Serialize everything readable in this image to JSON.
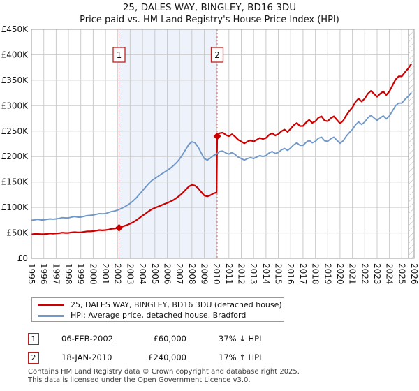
{
  "chart_data": {
    "type": "line",
    "title": "25, DALES WAY, BINGLEY, BD16 3DU",
    "subtitle": "Price paid vs. HM Land Registry's House Price Index (HPI)",
    "xlabel": "",
    "ylabel": "",
    "grid": true,
    "legend_position": "bottom",
    "x_range": [
      1995,
      2026
    ],
    "y_range_k": [
      0,
      450
    ],
    "y_unit": "GBP thousands",
    "x_ticks": [
      1995,
      1996,
      1997,
      1998,
      1999,
      2000,
      2001,
      2002,
      2003,
      2004,
      2005,
      2006,
      2007,
      2008,
      2009,
      2010,
      2011,
      2012,
      2013,
      2014,
      2015,
      2016,
      2017,
      2018,
      2019,
      2020,
      2021,
      2022,
      2023,
      2024,
      2025,
      2026
    ],
    "y_ticks_k": [
      0,
      50,
      100,
      150,
      200,
      250,
      300,
      350,
      400,
      450
    ],
    "y_tick_labels": [
      "£0",
      "£50K",
      "£100K",
      "£150K",
      "£200K",
      "£250K",
      "£300K",
      "£350K",
      "£400K",
      "£450K"
    ],
    "shaded_region": {
      "from": 2002.1,
      "to": 2010.05,
      "color": "#edf2fb"
    },
    "hatched_region": {
      "from": 2025.55,
      "to": 2026
    },
    "sale_markers": [
      {
        "label": "1",
        "x": 2002.1,
        "y_k": 60
      },
      {
        "label": "2",
        "x": 2010.05,
        "y_k": 240
      }
    ],
    "series": [
      {
        "name": "25, DALES WAY, BINGLEY, BD16 3DU (detached house)",
        "color": "#cc0000",
        "width": 2.2,
        "points": [
          [
            1995,
            47
          ],
          [
            1995.25,
            48
          ],
          [
            1995.5,
            48
          ],
          [
            1995.75,
            47.5
          ],
          [
            1996,
            47.5
          ],
          [
            1996.25,
            48
          ],
          [
            1996.5,
            49
          ],
          [
            1996.75,
            48.5
          ],
          [
            1997,
            49
          ],
          [
            1997.25,
            49.5
          ],
          [
            1997.5,
            50.5
          ],
          [
            1997.75,
            50
          ],
          [
            1998,
            50
          ],
          [
            1998.25,
            51
          ],
          [
            1998.5,
            51.5
          ],
          [
            1998.75,
            51
          ],
          [
            1999,
            51
          ],
          [
            1999.25,
            52
          ],
          [
            1999.5,
            53
          ],
          [
            1999.75,
            53
          ],
          [
            2000,
            53.5
          ],
          [
            2000.25,
            54.5
          ],
          [
            2000.5,
            55.5
          ],
          [
            2000.75,
            55
          ],
          [
            2001,
            55.5
          ],
          [
            2001.25,
            56.5
          ],
          [
            2001.5,
            58
          ],
          [
            2001.75,
            58.5
          ],
          [
            2002,
            59.5
          ],
          [
            2002.1,
            60
          ],
          [
            2002.25,
            61.5
          ],
          [
            2002.5,
            63.5
          ],
          [
            2002.75,
            65.5
          ],
          [
            2003,
            68
          ],
          [
            2003.25,
            71
          ],
          [
            2003.5,
            75
          ],
          [
            2003.75,
            79.5
          ],
          [
            2004,
            84
          ],
          [
            2004.25,
            88
          ],
          [
            2004.5,
            92.5
          ],
          [
            2004.75,
            96.5
          ],
          [
            2005,
            99
          ],
          [
            2005.25,
            101.5
          ],
          [
            2005.5,
            104
          ],
          [
            2005.75,
            106.5
          ],
          [
            2006,
            109
          ],
          [
            2006.25,
            111.5
          ],
          [
            2006.5,
            114.5
          ],
          [
            2006.75,
            118.5
          ],
          [
            2007,
            123
          ],
          [
            2007.25,
            128.5
          ],
          [
            2007.5,
            135
          ],
          [
            2007.75,
            141
          ],
          [
            2008,
            144.5
          ],
          [
            2008.25,
            143
          ],
          [
            2008.5,
            138
          ],
          [
            2008.75,
            130.5
          ],
          [
            2009,
            123.5
          ],
          [
            2009.25,
            121.5
          ],
          [
            2009.5,
            124
          ],
          [
            2009.75,
            127.5
          ],
          [
            2010,
            129.5
          ],
          [
            2010.05,
            240
          ],
          [
            2010.25,
            246
          ],
          [
            2010.5,
            247
          ],
          [
            2010.75,
            242.5
          ],
          [
            2011,
            240
          ],
          [
            2011.25,
            244
          ],
          [
            2011.5,
            239
          ],
          [
            2011.75,
            233
          ],
          [
            2012,
            229.5
          ],
          [
            2012.25,
            226
          ],
          [
            2012.5,
            229.5
          ],
          [
            2012.75,
            232
          ],
          [
            2013,
            229.5
          ],
          [
            2013.25,
            233
          ],
          [
            2013.5,
            236.5
          ],
          [
            2013.75,
            234.5
          ],
          [
            2014,
            236.5
          ],
          [
            2014.25,
            242.5
          ],
          [
            2014.5,
            246
          ],
          [
            2014.75,
            241.5
          ],
          [
            2015,
            244
          ],
          [
            2015.25,
            249.5
          ],
          [
            2015.5,
            253
          ],
          [
            2015.75,
            248.5
          ],
          [
            2016,
            254.5
          ],
          [
            2016.25,
            261.5
          ],
          [
            2016.5,
            266
          ],
          [
            2016.75,
            260
          ],
          [
            2017,
            260
          ],
          [
            2017.25,
            267
          ],
          [
            2017.5,
            272
          ],
          [
            2017.75,
            266
          ],
          [
            2018,
            269.5
          ],
          [
            2018.25,
            276.5
          ],
          [
            2018.5,
            279
          ],
          [
            2018.75,
            270.5
          ],
          [
            2019,
            269.5
          ],
          [
            2019.25,
            275.5
          ],
          [
            2019.5,
            279
          ],
          [
            2019.75,
            272
          ],
          [
            2020,
            265
          ],
          [
            2020.25,
            270.5
          ],
          [
            2020.5,
            281
          ],
          [
            2020.75,
            289.5
          ],
          [
            2021,
            296.5
          ],
          [
            2021.25,
            307
          ],
          [
            2021.5,
            314
          ],
          [
            2021.75,
            308
          ],
          [
            2022,
            314
          ],
          [
            2022.25,
            323.5
          ],
          [
            2022.5,
            329
          ],
          [
            2022.75,
            323.5
          ],
          [
            2023,
            317.5
          ],
          [
            2023.25,
            323.5
          ],
          [
            2023.5,
            328
          ],
          [
            2023.75,
            321
          ],
          [
            2024,
            328
          ],
          [
            2024.25,
            340
          ],
          [
            2024.5,
            351.5
          ],
          [
            2024.75,
            357.5
          ],
          [
            2025,
            357.5
          ],
          [
            2025.25,
            365.5
          ],
          [
            2025.5,
            372.5
          ],
          [
            2025.75,
            381
          ]
        ]
      },
      {
        "name": "HPI: Average price, detached house, Bradford",
        "color": "#6f97c8",
        "width": 1.9,
        "points": [
          [
            1995,
            75
          ],
          [
            1995.25,
            75.5
          ],
          [
            1995.5,
            76.5
          ],
          [
            1995.75,
            75.5
          ],
          [
            1996,
            75.5
          ],
          [
            1996.25,
            76.5
          ],
          [
            1996.5,
            77.5
          ],
          [
            1996.75,
            77
          ],
          [
            1997,
            77.5
          ],
          [
            1997.25,
            78.5
          ],
          [
            1997.5,
            80
          ],
          [
            1997.75,
            79.5
          ],
          [
            1998,
            79.5
          ],
          [
            1998.25,
            81
          ],
          [
            1998.5,
            82
          ],
          [
            1998.75,
            81
          ],
          [
            1999,
            81
          ],
          [
            1999.25,
            82.5
          ],
          [
            1999.5,
            84
          ],
          [
            1999.75,
            84.5
          ],
          [
            2000,
            85
          ],
          [
            2000.25,
            86.5
          ],
          [
            2000.5,
            88
          ],
          [
            2000.75,
            87.5
          ],
          [
            2001,
            88
          ],
          [
            2001.25,
            90
          ],
          [
            2001.5,
            92
          ],
          [
            2001.75,
            93
          ],
          [
            2002,
            95
          ],
          [
            2002.25,
            97.5
          ],
          [
            2002.5,
            100.5
          ],
          [
            2002.75,
            104
          ],
          [
            2003,
            108
          ],
          [
            2003.25,
            113
          ],
          [
            2003.5,
            119
          ],
          [
            2003.75,
            126
          ],
          [
            2004,
            133
          ],
          [
            2004.25,
            140
          ],
          [
            2004.5,
            147
          ],
          [
            2004.75,
            153
          ],
          [
            2005,
            157
          ],
          [
            2005.25,
            161
          ],
          [
            2005.5,
            165
          ],
          [
            2005.75,
            169
          ],
          [
            2006,
            173
          ],
          [
            2006.25,
            177
          ],
          [
            2006.5,
            182
          ],
          [
            2006.75,
            188
          ],
          [
            2007,
            195
          ],
          [
            2007.25,
            204
          ],
          [
            2007.5,
            214
          ],
          [
            2007.75,
            224
          ],
          [
            2008,
            229
          ],
          [
            2008.25,
            227
          ],
          [
            2008.5,
            219
          ],
          [
            2008.75,
            207
          ],
          [
            2009,
            196
          ],
          [
            2009.25,
            193
          ],
          [
            2009.5,
            197
          ],
          [
            2009.75,
            202
          ],
          [
            2010,
            205
          ],
          [
            2010.25,
            210
          ],
          [
            2010.5,
            211
          ],
          [
            2010.75,
            207
          ],
          [
            2011,
            205
          ],
          [
            2011.25,
            208
          ],
          [
            2011.5,
            204
          ],
          [
            2011.75,
            199
          ],
          [
            2012,
            196
          ],
          [
            2012.25,
            193
          ],
          [
            2012.5,
            196
          ],
          [
            2012.75,
            198
          ],
          [
            2013,
            196
          ],
          [
            2013.25,
            199
          ],
          [
            2013.5,
            202
          ],
          [
            2013.75,
            200
          ],
          [
            2014,
            202
          ],
          [
            2014.25,
            207
          ],
          [
            2014.5,
            210
          ],
          [
            2014.75,
            206
          ],
          [
            2015,
            208
          ],
          [
            2015.25,
            213
          ],
          [
            2015.5,
            216
          ],
          [
            2015.75,
            212
          ],
          [
            2016,
            217
          ],
          [
            2016.25,
            223
          ],
          [
            2016.5,
            227
          ],
          [
            2016.75,
            222
          ],
          [
            2017,
            222
          ],
          [
            2017.25,
            228
          ],
          [
            2017.5,
            232
          ],
          [
            2017.75,
            227
          ],
          [
            2018,
            230
          ],
          [
            2018.25,
            236
          ],
          [
            2018.5,
            238
          ],
          [
            2018.75,
            231
          ],
          [
            2019,
            230
          ],
          [
            2019.25,
            235
          ],
          [
            2019.5,
            238
          ],
          [
            2019.75,
            232
          ],
          [
            2020,
            226
          ],
          [
            2020.25,
            231
          ],
          [
            2020.5,
            240
          ],
          [
            2020.75,
            247
          ],
          [
            2021,
            253
          ],
          [
            2021.25,
            262
          ],
          [
            2021.5,
            268
          ],
          [
            2021.75,
            263
          ],
          [
            2022,
            268
          ],
          [
            2022.25,
            276
          ],
          [
            2022.5,
            281
          ],
          [
            2022.75,
            276
          ],
          [
            2023,
            271
          ],
          [
            2023.25,
            276
          ],
          [
            2023.5,
            280
          ],
          [
            2023.75,
            274
          ],
          [
            2024,
            280
          ],
          [
            2024.25,
            290
          ],
          [
            2024.5,
            300
          ],
          [
            2024.75,
            305
          ],
          [
            2025,
            305
          ],
          [
            2025.25,
            312
          ],
          [
            2025.5,
            318
          ],
          [
            2025.75,
            325
          ]
        ]
      }
    ]
  },
  "transactions": [
    {
      "num": "1",
      "date": "06-FEB-2002",
      "price": "£60,000",
      "hpi": "37% ↓ HPI"
    },
    {
      "num": "2",
      "date": "18-JAN-2010",
      "price": "£240,000",
      "hpi": "17% ↑ HPI"
    }
  ],
  "footer": {
    "line1": "Contains HM Land Registry data © Crown copyright and database right 2025.",
    "line2": "This data is licensed under the Open Government Licence v3.0."
  }
}
